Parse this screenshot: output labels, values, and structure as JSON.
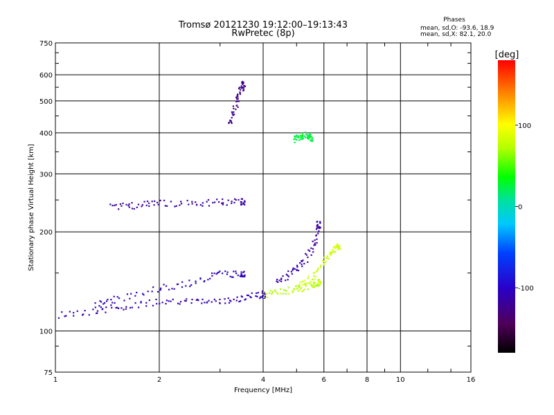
{
  "chart_data": {
    "type": "scatter",
    "title": "Tromsø 20121230 19:12:00–19:13:43",
    "subtitle": "RwPretec (8p)",
    "xlabel": "Frequency [MHz]",
    "ylabel": "Stationary phase Virtual Height [km]",
    "x_scale": "log",
    "y_scale": "log",
    "xlim": [
      1,
      16
    ],
    "ylim": [
      75,
      750
    ],
    "x_ticks": [
      1,
      2,
      4,
      6,
      8,
      10,
      16
    ],
    "x_tick_labels": [
      "1",
      "2",
      "4",
      "6",
      "8",
      "10",
      "16"
    ],
    "y_ticks": [
      75,
      100,
      200,
      300,
      400,
      500,
      600,
      750
    ],
    "y_tick_labels": [
      "75",
      "100",
      "200",
      "300",
      "400",
      "500",
      "600",
      "750"
    ],
    "grid": true,
    "phases_box": {
      "title": "Phases",
      "line1": "mean, sd,O: -93.6, 18.9",
      "line2": "mean, sd,X:  82.1, 20.0"
    },
    "colorbar": {
      "label": "[deg]",
      "range": [
        -180,
        180
      ],
      "ticks": [
        100,
        0,
        -100
      ],
      "tick_labels": [
        "100",
        "0",
        "-100"
      ]
    },
    "clusters": [
      {
        "name": "O-trace",
        "x": [
          1.0,
          1.3,
          1.6,
          2.0,
          2.5,
          3.0,
          3.5,
          4.0
        ],
        "y": [
          112,
          115,
          119,
          122,
          123,
          124,
          126,
          129
        ],
        "phase": -110
      },
      {
        "name": "X-trace",
        "x": [
          4.0,
          4.5,
          5.0,
          5.5,
          5.8
        ],
        "y": [
          129,
          131,
          134,
          137,
          140
        ],
        "phase": 75
      },
      {
        "name": "E-layer spread",
        "x": [
          1.3,
          1.5,
          2.0,
          2.5,
          3.0,
          3.5
        ],
        "y": [
          120,
          125,
          135,
          140,
          150,
          148
        ],
        "phase": -105
      },
      {
        "name": "F-trace O",
        "x": [
          1.45,
          1.7,
          2.0,
          2.5,
          3.0,
          3.5
        ],
        "y": [
          238,
          240,
          244,
          245,
          246,
          247
        ],
        "phase": -118
      },
      {
        "name": "F-trace O steep",
        "x": [
          4.4,
          4.8,
          5.2,
          5.6,
          5.8
        ],
        "y": [
          140,
          150,
          160,
          180,
          210
        ],
        "phase": -115
      },
      {
        "name": "F-trace X steep",
        "x": [
          5.0,
          5.5,
          6.0,
          6.3,
          6.6
        ],
        "y": [
          135,
          145,
          160,
          175,
          180
        ],
        "phase": 80
      },
      {
        "name": "High echoes",
        "x": [
          3.2,
          3.3,
          3.4,
          3.5
        ],
        "y": [
          420,
          470,
          520,
          560
        ],
        "phase": -125
      },
      {
        "name": "Green cluster",
        "x": [
          4.9,
          5.1,
          5.3,
          5.5
        ],
        "y": [
          380,
          390,
          395,
          385
        ],
        "phase": 25
      }
    ]
  }
}
